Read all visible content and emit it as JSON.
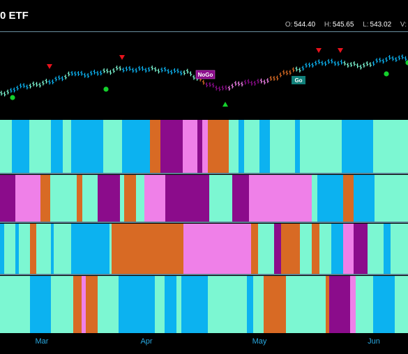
{
  "header": {
    "title": "0 ETF",
    "ohlc": {
      "open_label": "O:",
      "open": "544.40",
      "high_label": "H:",
      "high": "545.65",
      "low_label": "L:",
      "low": "543.02",
      "volume_label": "V:",
      "volume": ""
    }
  },
  "chart_data": {
    "type": "bar",
    "x_tick_labels": [
      "Mar",
      "Apr",
      "May",
      "Jun"
    ],
    "price_annotations": [
      "NoGo",
      "Go"
    ],
    "color_legend": {
      "strong_go": "#0cb2f0",
      "weak_go": "#7cf7d2",
      "weak_nogo": "#ef80e8",
      "strong_nogo": "#8b0c8b",
      "neutral": "#d86a24"
    },
    "marker_colors": {
      "sell_triangle": "#e8121c",
      "buy_triangle": "#14d02c",
      "dot": "#14d02c"
    },
    "panel_color_sequences": [
      [
        "weak_go",
        "strong_go",
        "weak_go",
        "strong_go",
        "weak_go",
        "strong_go",
        "weak_go",
        "strong_go",
        "neutral",
        "strong_nogo",
        "weak_nogo",
        "strong_nogo",
        "weak_nogo",
        "neutral",
        "weak_go",
        "strong_go",
        "weak_go",
        "strong_go"
      ],
      [
        "strong_nogo",
        "weak_nogo",
        "neutral",
        "weak_go",
        "neutral",
        "weak_go",
        "strong_nogo",
        "weak_go",
        "neutral",
        "weak_go",
        "weak_nogo",
        "strong_nogo",
        "weak_go",
        "strong_nogo",
        "weak_nogo",
        "weak_go",
        "strong_go",
        "neutral",
        "strong_go",
        "weak_go"
      ],
      [
        "strong_go",
        "weak_go",
        "strong_go",
        "weak_go",
        "neutral",
        "weak_go",
        "strong_go",
        "weak_go",
        "strong_go",
        "weak_go",
        "neutral",
        "weak_nogo",
        "neutral",
        "weak_go",
        "strong_nogo",
        "neutral",
        "weak_go",
        "neutral",
        "weak_go",
        "strong_go",
        "weak_nogo",
        "strong_nogo",
        "weak_go"
      ],
      [
        "weak_go",
        "strong_go",
        "weak_go",
        "neutral",
        "weak_nogo",
        "neutral",
        "weak_go",
        "strong_go",
        "weak_go",
        "strong_go",
        "weak_go",
        "strong_go",
        "weak_go",
        "strong_go",
        "weak_go",
        "neutral",
        "weak_go",
        "neutral",
        "strong_nogo",
        "weak_nogo",
        "weak_go"
      ]
    ]
  }
}
